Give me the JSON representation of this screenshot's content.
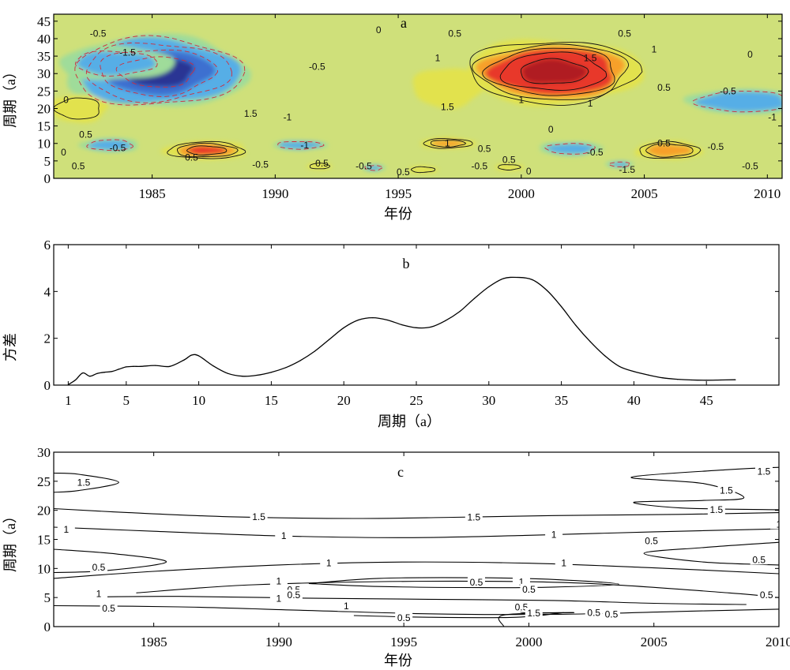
{
  "chart_data": [
    {
      "id": "a",
      "type": "heatmap",
      "panel_label": "a",
      "title": "",
      "xlabel": "年份",
      "ylabel": "周期（a）",
      "xlim": [
        1981,
        2010.6
      ],
      "ylim": [
        0,
        47
      ],
      "x_ticks": [
        1985,
        1990,
        1995,
        2000,
        2005,
        2010
      ],
      "y_ticks": [
        0,
        5,
        10,
        15,
        20,
        25,
        30,
        35,
        40,
        45
      ],
      "grid": false,
      "colormap": [
        "#2b3594",
        "#3d6fd0",
        "#56aee6",
        "#9fdc9a",
        "#e2e24e",
        "#f6a02c",
        "#e8392a",
        "#b01f20"
      ],
      "blobs": [
        {
          "x": 1985.2,
          "y": 30.5,
          "sx": 3.4,
          "sy": 9.5,
          "value": -1.8
        },
        {
          "x": 1983.5,
          "y": 33,
          "sx": 2.4,
          "sy": 5,
          "value": -0.6
        },
        {
          "x": 2001.3,
          "y": 30.5,
          "sx": 3.3,
          "sy": 8.5,
          "value": 2.2
        },
        {
          "x": 1997.0,
          "y": 26,
          "sx": 1.5,
          "sy": 6,
          "value": 0.5
        },
        {
          "x": 2009.0,
          "y": 22,
          "sx": 2.2,
          "sy": 3.5,
          "value": -0.9
        },
        {
          "x": 1987.2,
          "y": 8,
          "sx": 1.6,
          "sy": 2.5,
          "value": 1.4
        },
        {
          "x": 2006.0,
          "y": 8,
          "sx": 1.3,
          "sy": 2.5,
          "value": 1.3
        },
        {
          "x": 1997.0,
          "y": 10,
          "sx": 1.1,
          "sy": 1.5,
          "value": 1.1
        },
        {
          "x": 1991.0,
          "y": 9.5,
          "sx": 1.1,
          "sy": 1.3,
          "value": -0.9
        },
        {
          "x": 2002.0,
          "y": 8.5,
          "sx": 1.3,
          "sy": 2,
          "value": -0.7
        },
        {
          "x": 1982.0,
          "y": 20,
          "sx": 1.2,
          "sy": 4,
          "value": 0.7
        },
        {
          "x": 1983.3,
          "y": 9.5,
          "sx": 1.2,
          "sy": 2,
          "value": -0.7
        },
        {
          "x": 1991.8,
          "y": 3.5,
          "sx": 0.5,
          "sy": 1,
          "value": 0.8
        },
        {
          "x": 1996.0,
          "y": 2.5,
          "sx": 0.6,
          "sy": 1,
          "value": 0.8
        },
        {
          "x": 1999.5,
          "y": 3.2,
          "sx": 0.6,
          "sy": 1,
          "value": 0.7
        },
        {
          "x": 1994.0,
          "y": 3,
          "sx": 0.5,
          "sy": 1,
          "value": -0.6
        },
        {
          "x": 2004.0,
          "y": 4,
          "sx": 0.6,
          "sy": 1,
          "value": -0.6
        }
      ],
      "contour_labels": [
        {
          "text": "-0.5",
          "x": 1982.8,
          "y": 41.5
        },
        {
          "text": "-1.5",
          "x": 1984.0,
          "y": 36
        },
        {
          "text": "-0.5",
          "x": 1991.7,
          "y": 32
        },
        {
          "text": "1.5",
          "x": 1989.0,
          "y": 18.5
        },
        {
          "text": "-1",
          "x": 1990.5,
          "y": 17.5
        },
        {
          "text": "0",
          "x": 1981.5,
          "y": 22.5
        },
        {
          "text": "0.5",
          "x": 1982.3,
          "y": 12.5
        },
        {
          "text": "-0.5",
          "x": 1983.6,
          "y": 8.7
        },
        {
          "text": "0",
          "x": 1981.4,
          "y": 7.5
        },
        {
          "text": "0.5",
          "x": 1982.0,
          "y": 3.5
        },
        {
          "text": "0.5",
          "x": 1986.6,
          "y": 6
        },
        {
          "text": "-0.5",
          "x": 1989.4,
          "y": 4
        },
        {
          "text": "-1",
          "x": 1991.2,
          "y": 9.5
        },
        {
          "text": "0.5",
          "x": 1991.9,
          "y": 4.3
        },
        {
          "text": "0",
          "x": 1994.2,
          "y": 42.5
        },
        {
          "text": "-0.5",
          "x": 1993.6,
          "y": 3.5
        },
        {
          "text": "0.5",
          "x": 1995.2,
          "y": 1.8
        },
        {
          "text": "0.5",
          "x": 1997.3,
          "y": 41.5
        },
        {
          "text": "0.5",
          "x": 2004.2,
          "y": 41.5
        },
        {
          "text": "1",
          "x": 1996.6,
          "y": 34.5
        },
        {
          "text": "1.5",
          "x": 2002.8,
          "y": 34.5
        },
        {
          "text": "1",
          "x": 2005.4,
          "y": 37
        },
        {
          "text": "1.5",
          "x": 1997.0,
          "y": 20.5
        },
        {
          "text": "1",
          "x": 2000.0,
          "y": 22.5
        },
        {
          "text": "1",
          "x": 2002.8,
          "y": 21.5
        },
        {
          "text": "0.5",
          "x": 2005.8,
          "y": 26
        },
        {
          "text": "0",
          "x": 2009.3,
          "y": 35.5
        },
        {
          "text": "-0.5",
          "x": 2008.4,
          "y": 25
        },
        {
          "text": "-1",
          "x": 2010.2,
          "y": 17.5
        },
        {
          "text": "0",
          "x": 2001.2,
          "y": 14
        },
        {
          "text": "1",
          "x": 1997.0,
          "y": 10
        },
        {
          "text": "0.5",
          "x": 1998.5,
          "y": 8.5
        },
        {
          "text": "-0.5",
          "x": 2003.0,
          "y": 7.5
        },
        {
          "text": "0.5",
          "x": 2005.8,
          "y": 10
        },
        {
          "text": "-0.5",
          "x": 2007.9,
          "y": 9
        },
        {
          "text": "0.5",
          "x": 1999.5,
          "y": 5.3
        },
        {
          "text": "-0.5",
          "x": 1998.3,
          "y": 3.5
        },
        {
          "text": "0",
          "x": 2000.3,
          "y": 2
        },
        {
          "text": "-0.5",
          "x": 2009.3,
          "y": 3.5
        },
        {
          "text": "-1.5",
          "x": 2004.3,
          "y": 2.5
        }
      ]
    },
    {
      "id": "b",
      "type": "line",
      "panel_label": "b",
      "title": "",
      "xlabel": "周期（a）",
      "ylabel": "方差",
      "xlim": [
        0,
        50
      ],
      "ylim": [
        0,
        6
      ],
      "x_ticks": [
        1,
        5,
        10,
        15,
        20,
        25,
        30,
        35,
        40,
        45
      ],
      "y_ticks": [
        0,
        2,
        4,
        6
      ],
      "grid": false,
      "series": [
        {
          "x": [
            1,
            1.5,
            2,
            2.5,
            3,
            3.5,
            4,
            4.5,
            5,
            5.5,
            6,
            7,
            8,
            9,
            9.5,
            10,
            11,
            12,
            13,
            14,
            15,
            16,
            17,
            18,
            19,
            20,
            21,
            22,
            23,
            24,
            25,
            26,
            27,
            28,
            29,
            30,
            31,
            32,
            33,
            34,
            35,
            36,
            37,
            38,
            39,
            40,
            41,
            42,
            43,
            44,
            45,
            46,
            47
          ],
          "y": [
            0.02,
            0.22,
            0.52,
            0.38,
            0.5,
            0.55,
            0.58,
            0.68,
            0.78,
            0.8,
            0.8,
            0.84,
            0.8,
            1.08,
            1.28,
            1.25,
            0.82,
            0.5,
            0.38,
            0.42,
            0.55,
            0.75,
            1.05,
            1.45,
            1.95,
            2.45,
            2.78,
            2.88,
            2.78,
            2.58,
            2.45,
            2.48,
            2.75,
            3.15,
            3.7,
            4.2,
            4.55,
            4.6,
            4.5,
            4.05,
            3.35,
            2.55,
            1.85,
            1.25,
            0.8,
            0.58,
            0.43,
            0.31,
            0.25,
            0.22,
            0.21,
            0.22,
            0.23
          ]
        }
      ]
    },
    {
      "id": "c",
      "type": "line",
      "panel_label": "c",
      "title": "",
      "xlabel": "年份",
      "ylabel": "周期（a）",
      "xlim": [
        1981,
        2010
      ],
      "ylim": [
        0,
        30
      ],
      "x_ticks": [
        1985,
        1990,
        1995,
        2000,
        2005,
        2010
      ],
      "y_ticks": [
        0,
        5,
        10,
        15,
        20,
        25,
        30
      ],
      "grid": false,
      "contours": [
        {
          "x": [
            1981,
            1982,
            1983.6,
            1982,
            1981
          ],
          "y": [
            26.4,
            26.2,
            24.8,
            23.4,
            23.1
          ]
        },
        {
          "x": [
            2010,
            2008,
            2004.1,
            2007,
            2008.6,
            2007,
            2004.2,
            2006.1,
            2010
          ],
          "y": [
            27.4,
            27,
            25.7,
            24.6,
            22.2,
            21.7,
            21.4,
            20.4,
            20.1
          ]
        },
        {
          "x": [
            1981,
            1984,
            1988,
            1993,
            1997,
            2001,
            2006,
            2010
          ],
          "y": [
            20.3,
            19.6,
            18.9,
            18.6,
            18.8,
            19.1,
            19.3,
            19.6
          ]
        },
        {
          "x": [
            1981,
            1985,
            1990,
            1995,
            2000,
            2005,
            2010
          ],
          "y": [
            17.1,
            16.4,
            15.6,
            15.3,
            15.7,
            16.3,
            16.8
          ]
        },
        {
          "x": [
            2010,
            2007,
            2004.6,
            2007,
            2010
          ],
          "y": [
            14.5,
            13.6,
            12.6,
            11.1,
            10.6
          ]
        },
        {
          "x": [
            1981,
            1983.5,
            1985.5,
            1983,
            1981
          ],
          "y": [
            13.3,
            12.5,
            11.1,
            9.6,
            9.3
          ]
        },
        {
          "x": [
            1981,
            1985,
            1990,
            1995,
            2000,
            2005,
            2010
          ],
          "y": [
            8.3,
            9.5,
            10.6,
            11.1,
            10.9,
            10.1,
            9.1
          ]
        },
        {
          "x": [
            1991.2,
            1994,
            1998,
            2001,
            2003.6,
            2001,
            1998,
            1994,
            1991.2
          ],
          "y": [
            7.4,
            8.3,
            8.4,
            8.1,
            7.3,
            6.8,
            6.7,
            6.9,
            7.4
          ]
        },
        {
          "x": [
            1984.3,
            1989,
            1996,
            2002,
            2008,
            2010
          ],
          "y": [
            5.8,
            7.2,
            7.8,
            7.5,
            5.8,
            5.0
          ]
        },
        {
          "x": [
            1982.6,
            1986,
            1991,
            1996,
            2001,
            2005,
            2008.7
          ],
          "y": [
            5.1,
            5.2,
            4.9,
            4.7,
            4.5,
            4.0,
            3.8
          ]
        },
        {
          "x": [
            1981,
            1986,
            1991,
            1996,
            2001,
            2006,
            2010
          ],
          "y": [
            3.6,
            3.4,
            2.8,
            2.2,
            2.1,
            2.6,
            3.0
          ]
        },
        {
          "x": [
            1993,
            1996,
            1999.5,
            2001.4
          ],
          "y": [
            1.9,
            1.6,
            1.6,
            2.4
          ]
        },
        {
          "x": [
            1999,
            1999,
            2001.8,
            1999.8,
            1999.8
          ],
          "y": [
            0,
            2.0,
            2.4,
            2.4,
            3.0
          ]
        }
      ],
      "contour_labels": [
        {
          "text": "1.5",
          "x": 1982.2,
          "y": 24.8
        },
        {
          "text": "1.5",
          "x": 2009.4,
          "y": 26.7
        },
        {
          "text": "1.5",
          "x": 2007.9,
          "y": 23.4
        },
        {
          "text": "1.5",
          "x": 1989.2,
          "y": 18.9
        },
        {
          "text": "1.5",
          "x": 1997.8,
          "y": 18.8
        },
        {
          "text": "1.5",
          "x": 2007.5,
          "y": 20.1
        },
        {
          "text": "1",
          "x": 1981.5,
          "y": 16.7
        },
        {
          "text": "1",
          "x": 1990.2,
          "y": 15.6
        },
        {
          "text": "1",
          "x": 2001.0,
          "y": 15.8
        },
        {
          "text": "1",
          "x": 2010.0,
          "y": 17.6
        },
        {
          "text": "0.5",
          "x": 2004.9,
          "y": 14.7
        },
        {
          "text": "0.5",
          "x": 2009.2,
          "y": 11.5
        },
        {
          "text": "0.5",
          "x": 1982.8,
          "y": 10.2
        },
        {
          "text": "1",
          "x": 1992.0,
          "y": 10.9
        },
        {
          "text": "1",
          "x": 2001.4,
          "y": 10.9
        },
        {
          "text": "1",
          "x": 1990.0,
          "y": 7.8
        },
        {
          "text": "0.5",
          "x": 1997.9,
          "y": 7.6
        },
        {
          "text": "1",
          "x": 1999.7,
          "y": 7.7
        },
        {
          "text": "0.5",
          "x": 1990.6,
          "y": 6.3
        },
        {
          "text": "0.5",
          "x": 2000.0,
          "y": 6.4
        },
        {
          "text": "1",
          "x": 1982.8,
          "y": 5.6
        },
        {
          "text": "1",
          "x": 1990.0,
          "y": 4.8
        },
        {
          "text": "0.5",
          "x": 1990.6,
          "y": 5.4
        },
        {
          "text": "0.5",
          "x": 1983.2,
          "y": 3.1
        },
        {
          "text": "1",
          "x": 1992.7,
          "y": 3.5
        },
        {
          "text": "0.5",
          "x": 1999.7,
          "y": 3.3
        },
        {
          "text": "1.5",
          "x": 2000.2,
          "y": 2.3
        },
        {
          "text": "0.5",
          "x": 2002.6,
          "y": 2.4
        },
        {
          "text": "0.5",
          "x": 2003.3,
          "y": 2.1
        },
        {
          "text": "0.5",
          "x": 2009.5,
          "y": 5.4
        },
        {
          "text": "0.5",
          "x": 1995.0,
          "y": 1.5
        }
      ]
    }
  ]
}
